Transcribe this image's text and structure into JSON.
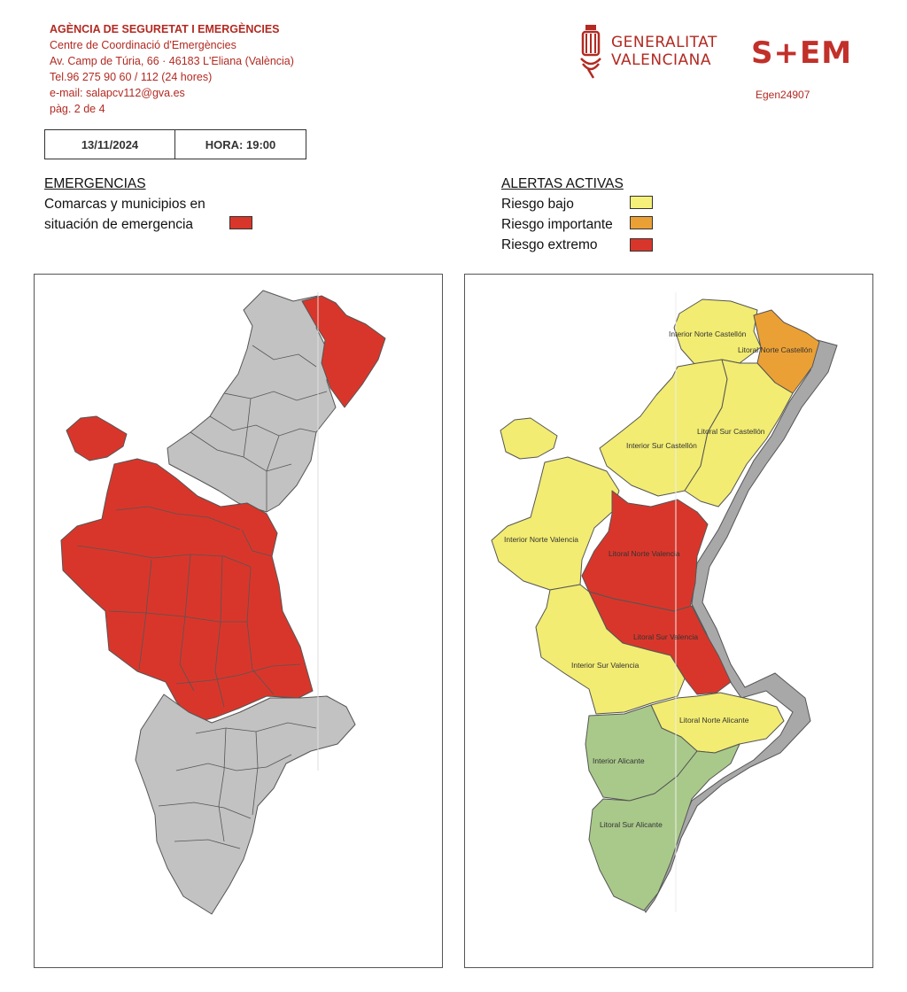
{
  "header": {
    "org": "AGÈNCIA DE SEGURETAT I EMERGÈNCIES",
    "line1": "Centre de Coordinació d'Emergències",
    "line2": "Av. Camp de Túria, 66 · 46183 L'Eliana (València)",
    "line3": "Tel.96 275 90 60 /  112 (24 hores)",
    "line4": "e-mail: salapcv112@gva.es",
    "page": "pàg. 2 de 4"
  },
  "logos": {
    "gv_line1": "GENERALITAT",
    "gv_line2": "VALENCIANA",
    "sem": "S+EM",
    "code": "Egen24907"
  },
  "datebox": {
    "date": "13/11/2024",
    "time": "HORA: 19:00"
  },
  "emergencias": {
    "title": "EMERGENCIAS",
    "line1": "Comarcas y municipios en",
    "line2": "situación de emergencia",
    "color": "#d9362b"
  },
  "alertas": {
    "title": "ALERTAS ACTIVAS",
    "items": [
      {
        "label": "Riesgo bajo",
        "color": "#f5f07a"
      },
      {
        "label": "Riesgo importante",
        "color": "#eba035"
      },
      {
        "label": "Riesgo extremo",
        "color": "#d9362b"
      }
    ]
  },
  "colors": {
    "grey": "#c2c2c2",
    "coast": "#a8a8a8",
    "red": "#d9362b",
    "yellow": "#f2ec72",
    "orange": "#eba035",
    "green": "#a9c98a"
  },
  "map_right_labels": {
    "inc": "Interior Norte Castellón",
    "lnc": "Litoral Norte Castellón",
    "lsc": "Litoral Sur Castellón",
    "isc": "Interior Sur Castellón",
    "inv": "Interior Norte Valencia",
    "lnv": "Litoral Norte Valencia",
    "lsv": "Litoral Sur Valencia",
    "isv": "Interior Sur Valencia",
    "lna": "Litoral Norte Alicante",
    "ia": "Interior Alicante",
    "lsa": "Litoral Sur Alicante"
  }
}
